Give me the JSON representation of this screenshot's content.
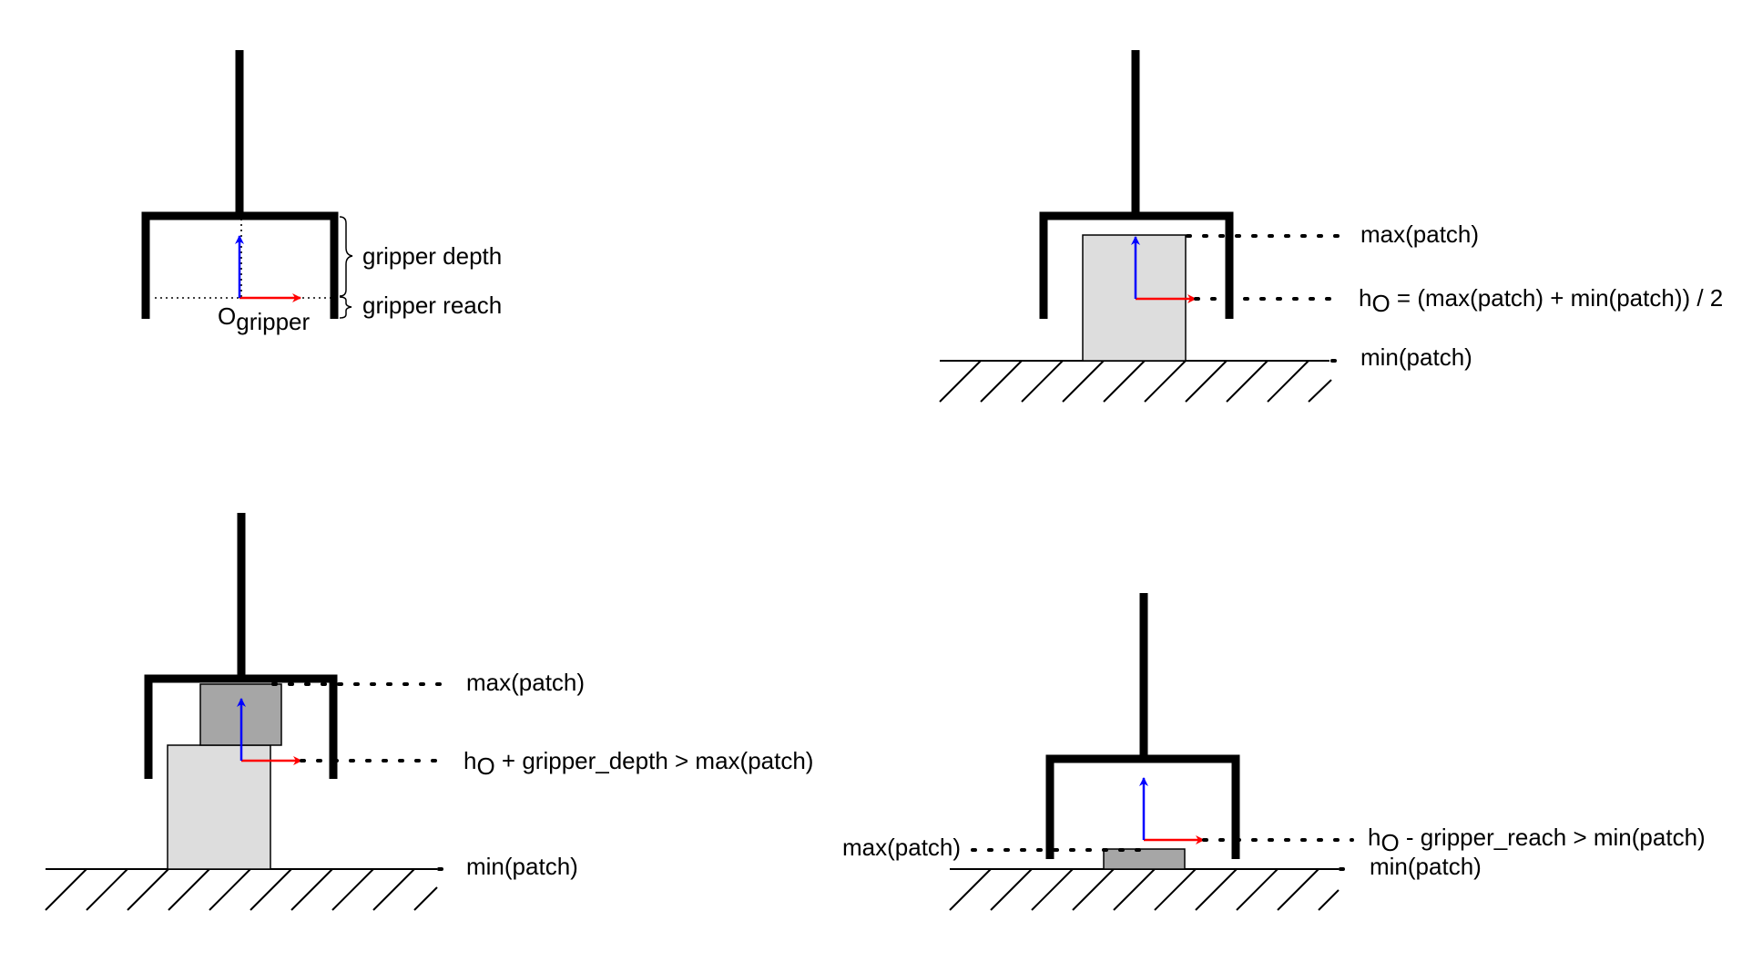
{
  "colors": {
    "x_axis": "#ff0000",
    "y_axis": "#0000ff",
    "patch_light": "#dddddd",
    "patch_dark": "#a6a6a6"
  },
  "panel_a": {
    "gripper_depth_label": "gripper depth",
    "gripper_reach_label": "gripper reach",
    "origin_main": "O",
    "origin_sub": "gripper"
  },
  "panel_b": {
    "max_label": "max(patch)",
    "h_main": "h",
    "h_sub": "O",
    "h_rest": " = (max(patch) + min(patch)) / 2",
    "min_label": "min(patch)"
  },
  "panel_c": {
    "max_label": "max(patch)",
    "h_main": "h",
    "h_sub": "O",
    "h_rest": " + gripper_depth > max(patch)",
    "min_label": "min(patch)"
  },
  "panel_d": {
    "max_label": "max(patch)",
    "h_main": "h",
    "h_sub": "O",
    "h_rest": " - gripper_reach > min(patch)",
    "min_label": "min(patch)"
  }
}
